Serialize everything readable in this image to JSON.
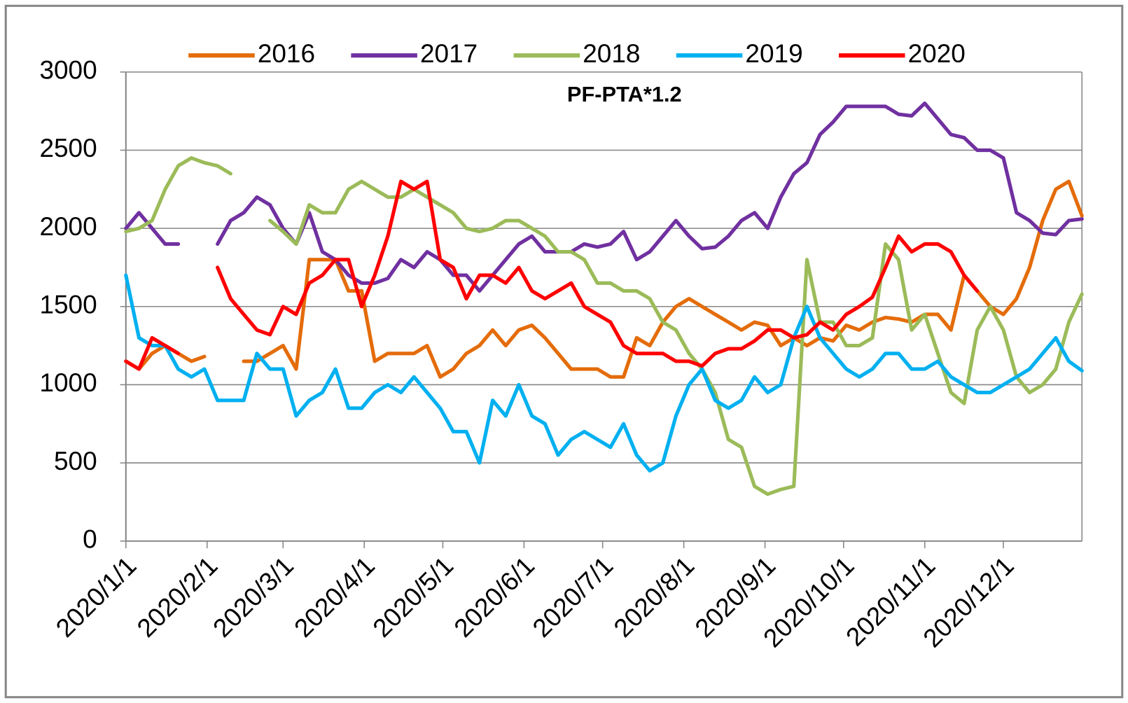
{
  "chart_data": {
    "type": "line",
    "title": "PF-PTA*1.2",
    "x": [
      "2020/1/1",
      "2020/1/6",
      "2020/1/11",
      "2020/1/16",
      "2020/1/21",
      "2020/1/26",
      "2020/1/31",
      "2020/2/5",
      "2020/2/10",
      "2020/2/15",
      "2020/2/20",
      "2020/2/25",
      "2020/3/1",
      "2020/3/6",
      "2020/3/11",
      "2020/3/16",
      "2020/3/21",
      "2020/3/26",
      "2020/3/31",
      "2020/4/5",
      "2020/4/10",
      "2020/4/15",
      "2020/4/20",
      "2020/4/25",
      "2020/4/30",
      "2020/5/5",
      "2020/5/10",
      "2020/5/15",
      "2020/5/20",
      "2020/5/25",
      "2020/5/30",
      "2020/6/4",
      "2020/6/9",
      "2020/6/14",
      "2020/6/19",
      "2020/6/24",
      "2020/6/29",
      "2020/7/4",
      "2020/7/9",
      "2020/7/14",
      "2020/7/19",
      "2020/7/24",
      "2020/7/29",
      "2020/8/3",
      "2020/8/8",
      "2020/8/13",
      "2020/8/18",
      "2020/8/23",
      "2020/8/28",
      "2020/9/2",
      "2020/9/7",
      "2020/9/12",
      "2020/9/17",
      "2020/9/22",
      "2020/9/27",
      "2020/10/2",
      "2020/10/7",
      "2020/10/12",
      "2020/10/17",
      "2020/10/22",
      "2020/10/27",
      "2020/11/1",
      "2020/11/6",
      "2020/11/11",
      "2020/11/16",
      "2020/11/21",
      "2020/11/26",
      "2020/12/1",
      "2020/12/6",
      "2020/12/11",
      "2020/12/16",
      "2020/12/21",
      "2020/12/26",
      "2020/12/31"
    ],
    "series": [
      {
        "name": "2016",
        "color": "#e46c0a",
        "values": [
          1150,
          1100,
          1200,
          1250,
          1200,
          1150,
          1180,
          null,
          null,
          1150,
          1150,
          1200,
          1250,
          1100,
          1800,
          1800,
          1800,
          1600,
          1600,
          1150,
          1200,
          1200,
          1200,
          1250,
          1050,
          1100,
          1200,
          1250,
          1350,
          1250,
          1350,
          1380,
          1300,
          1200,
          1100,
          1100,
          1100,
          1050,
          1050,
          1300,
          1250,
          1400,
          1500,
          1550,
          1500,
          1450,
          1400,
          1350,
          1400,
          1380,
          1250,
          1300,
          1250,
          1300,
          1280,
          1380,
          1350,
          1400,
          1430,
          1420,
          1400,
          1450,
          1450,
          1350,
          1700,
          1600,
          1500,
          1450,
          1550,
          1750,
          2050,
          2250,
          2300,
          2080
        ]
      },
      {
        "name": "2017",
        "color": "#7030a0",
        "values": [
          2000,
          2100,
          2000,
          1900,
          1900,
          null,
          null,
          1900,
          2050,
          2100,
          2200,
          2150,
          2000,
          1900,
          2100,
          1850,
          1800,
          1700,
          1650,
          1650,
          1680,
          1800,
          1750,
          1850,
          1800,
          1700,
          1700,
          1600,
          1700,
          1800,
          1900,
          1950,
          1850,
          1850,
          1850,
          1900,
          1880,
          1900,
          1980,
          1800,
          1850,
          1950,
          2050,
          1950,
          1870,
          1880,
          1950,
          2050,
          2100,
          2000,
          2200,
          2350,
          2420,
          2600,
          2680,
          2780,
          2780,
          2780,
          2780,
          2730,
          2720,
          2800,
          2700,
          2600,
          2580,
          2500,
          2500,
          2450,
          2100,
          2050,
          1970,
          1960,
          2050,
          2060
        ]
      },
      {
        "name": "2018",
        "color": "#9bbb59",
        "values": [
          1980,
          2000,
          2050,
          2250,
          2400,
          2450,
          2420,
          2400,
          2350,
          null,
          null,
          2050,
          1980,
          1900,
          2150,
          2100,
          2100,
          2250,
          2300,
          2250,
          2200,
          2200,
          2250,
          2200,
          2150,
          2100,
          2000,
          1980,
          2000,
          2050,
          2050,
          2000,
          1950,
          1850,
          1850,
          1800,
          1650,
          1650,
          1600,
          1600,
          1550,
          1400,
          1350,
          1200,
          1100,
          950,
          650,
          600,
          350,
          300,
          330,
          350,
          1800,
          1400,
          1400,
          1250,
          1250,
          1300,
          1900,
          1800,
          1350,
          1450,
          1200,
          950,
          880,
          1350,
          1500,
          1350,
          1050,
          950,
          1000,
          1100,
          1400,
          1580
        ]
      },
      {
        "name": "2019",
        "color": "#00b0f0",
        "values": [
          1700,
          1300,
          1250,
          1250,
          1100,
          1050,
          1100,
          900,
          900,
          900,
          1200,
          1100,
          1100,
          800,
          900,
          950,
          1100,
          850,
          850,
          950,
          1000,
          950,
          1050,
          950,
          850,
          700,
          700,
          500,
          900,
          800,
          1000,
          800,
          750,
          550,
          650,
          700,
          650,
          600,
          750,
          550,
          450,
          500,
          800,
          1000,
          1100,
          900,
          850,
          900,
          1050,
          950,
          1000,
          1300,
          1500,
          1300,
          1200,
          1100,
          1050,
          1100,
          1200,
          1200,
          1100,
          1100,
          1150,
          1050,
          1000,
          950,
          950,
          1000,
          1050,
          1100,
          1200,
          1300,
          1150,
          1090
        ]
      },
      {
        "name": "2020",
        "color": "#ff0000",
        "values": [
          1150,
          1100,
          1300,
          1250,
          1200,
          null,
          null,
          1750,
          1550,
          1450,
          1350,
          1320,
          1500,
          1450,
          1650,
          1700,
          1800,
          1800,
          1500,
          1700,
          1950,
          2300,
          2250,
          2300,
          1800,
          1750,
          1550,
          1700,
          1700,
          1650,
          1750,
          1600,
          1550,
          1600,
          1650,
          1500,
          1450,
          1400,
          1250,
          1200,
          1200,
          1200,
          1150,
          1150,
          1120,
          1200,
          1230,
          1230,
          1280,
          1350,
          1350,
          1300,
          1320,
          1400,
          1350,
          1450,
          1500,
          1560,
          1750,
          1950,
          1850,
          1900,
          1900,
          1850,
          1700,
          1600,
          null,
          null,
          null,
          null,
          null,
          null,
          null,
          null
        ]
      }
    ],
    "xlim": [
      "2020/1/1",
      "2020/12/31"
    ],
    "xticks": [
      "2020/1/1",
      "2020/2/1",
      "2020/3/1",
      "2020/4/1",
      "2020/5/1",
      "2020/6/1",
      "2020/7/1",
      "2020/8/1",
      "2020/9/1",
      "2020/10/1",
      "2020/11/1",
      "2020/12/1"
    ],
    "ylim": [
      0,
      3000
    ],
    "yticks": [
      0,
      500,
      1000,
      1500,
      2000,
      2500,
      3000
    ],
    "grid": true,
    "legend": "top"
  }
}
